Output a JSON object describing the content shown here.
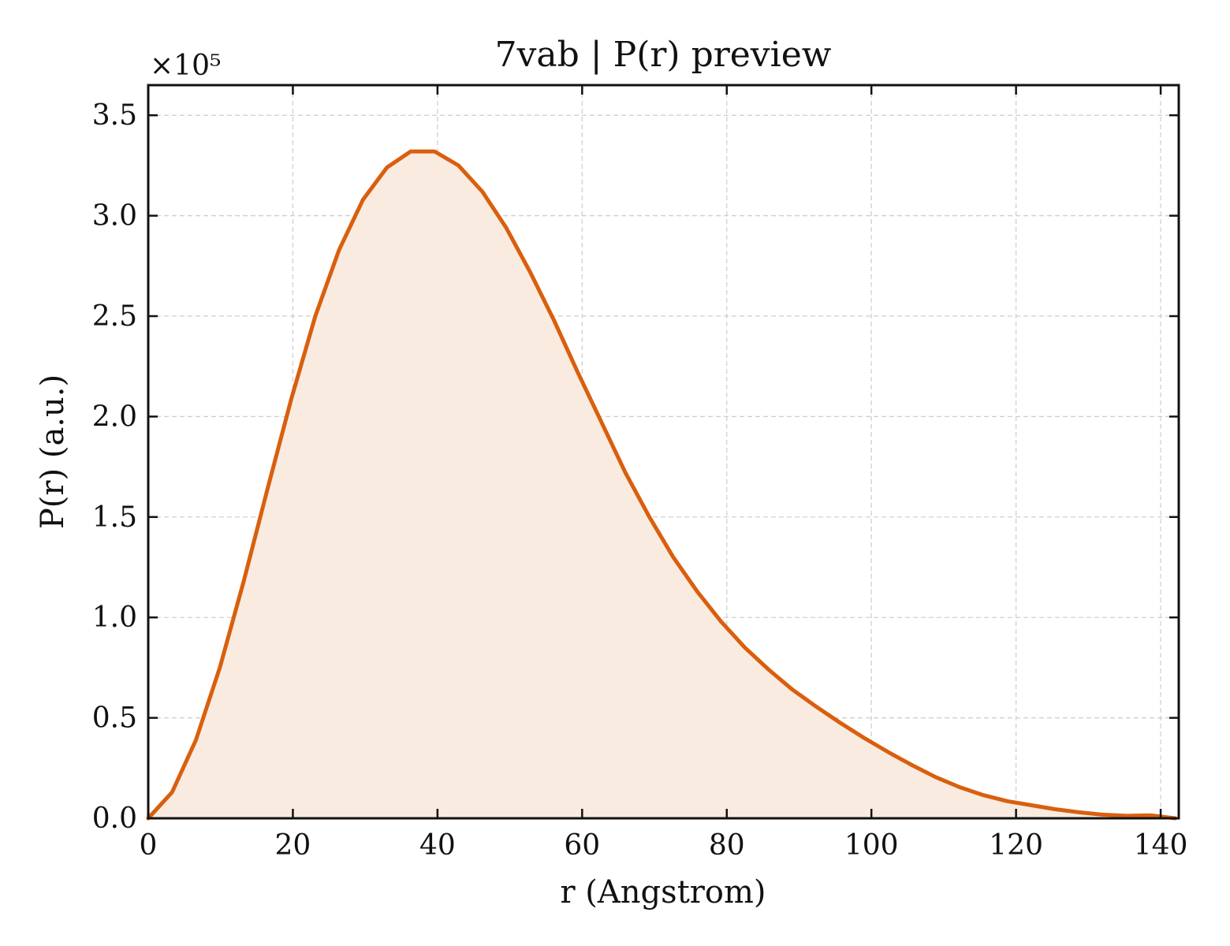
{
  "chart_data": {
    "type": "area",
    "title": "7vab | P(r) preview",
    "xlabel": "r (Angstrom)",
    "ylabel": "P(r) (a.u.)",
    "y_scale_label": "×10⁵",
    "xlim": [
      0,
      142.5
    ],
    "ylim": [
      0,
      3.65
    ],
    "y_multiplier": 100000,
    "x_ticks": [
      0,
      20,
      40,
      60,
      80,
      100,
      120,
      140
    ],
    "x_tick_labels": [
      "0",
      "20",
      "40",
      "60",
      "80",
      "100",
      "120",
      "140"
    ],
    "y_ticks": [
      0,
      0.5,
      1.0,
      1.5,
      2.0,
      2.5,
      3.0,
      3.5
    ],
    "y_tick_labels": [
      "0.0",
      "0.5",
      "1.0",
      "1.5",
      "2.0",
      "2.5",
      "3.0",
      "3.5"
    ],
    "grid": true,
    "colors": {
      "line": "#d95f0e",
      "fill": "#f9ebe0"
    },
    "series": [
      {
        "x": [
          0,
          3.3,
          6.6,
          9.9,
          13.2,
          16.5,
          19.8,
          23.1,
          26.4,
          29.7,
          33.0,
          36.3,
          39.6,
          42.9,
          46.2,
          49.5,
          52.8,
          56.1,
          59.4,
          62.7,
          66.0,
          69.3,
          72.6,
          75.9,
          79.2,
          82.5,
          85.8,
          89.1,
          92.4,
          95.7,
          99.0,
          102.3,
          105.6,
          108.9,
          112.2,
          115.5,
          118.8,
          122.1,
          125.4,
          128.7,
          132.0,
          135.3,
          138.6,
          142.0
        ],
        "values": [
          0.0,
          0.13,
          0.39,
          0.75,
          1.18,
          1.64,
          2.09,
          2.5,
          2.83,
          3.08,
          3.24,
          3.32,
          3.32,
          3.25,
          3.12,
          2.94,
          2.72,
          2.48,
          2.22,
          1.97,
          1.72,
          1.5,
          1.3,
          1.13,
          0.98,
          0.85,
          0.74,
          0.64,
          0.555,
          0.475,
          0.4,
          0.33,
          0.265,
          0.205,
          0.155,
          0.115,
          0.085,
          0.065,
          0.045,
          0.03,
          0.018,
          0.012,
          0.015,
          0.0
        ]
      }
    ]
  }
}
